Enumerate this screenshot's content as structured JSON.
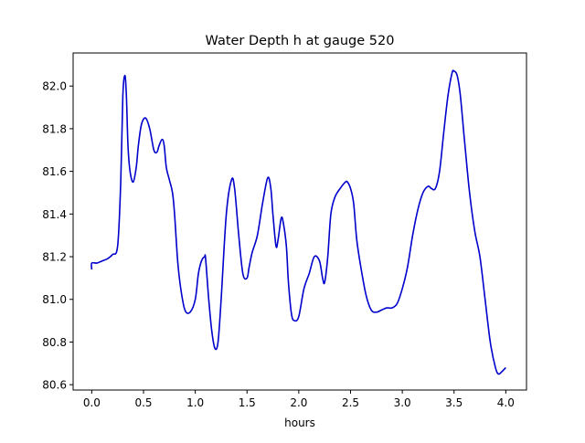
{
  "chart_data": {
    "type": "line",
    "title": "Water Depth h at gauge 520",
    "xlabel": "hours",
    "ylabel": "",
    "xlim": [
      -0.18,
      4.2
    ],
    "ylim": [
      80.575,
      82.155
    ],
    "xticks": [
      0.0,
      0.5,
      1.0,
      1.5,
      2.0,
      2.5,
      3.0,
      3.5,
      4.0
    ],
    "xtick_labels": [
      "0.0",
      "0.5",
      "1.0",
      "1.5",
      "2.0",
      "2.5",
      "3.0",
      "3.5",
      "4.0"
    ],
    "yticks": [
      80.6,
      80.8,
      81.0,
      81.2,
      81.4,
      81.6,
      81.8,
      82.0
    ],
    "ytick_labels": [
      "80.6",
      "80.8",
      "81.0",
      "81.2",
      "81.4",
      "81.6",
      "81.8",
      "82.0"
    ],
    "grid": false,
    "legend": "none",
    "series": [
      {
        "color": "#0000cc",
        "x": [
          0.0,
          0.0,
          0.05,
          0.1,
          0.15,
          0.2,
          0.25,
          0.28,
          0.3,
          0.32,
          0.335,
          0.35,
          0.37,
          0.4,
          0.43,
          0.45,
          0.48,
          0.52,
          0.56,
          0.6,
          0.63,
          0.65,
          0.68,
          0.7,
          0.72,
          0.75,
          0.78,
          0.8,
          0.83,
          0.86,
          0.9,
          0.95,
          1.0,
          1.03,
          1.06,
          1.09,
          1.1,
          1.13,
          1.16,
          1.19,
          1.22,
          1.25,
          1.3,
          1.35,
          1.38,
          1.42,
          1.46,
          1.5,
          1.52,
          1.55,
          1.6,
          1.65,
          1.7,
          1.73,
          1.75,
          1.78,
          1.8,
          1.83,
          1.85,
          1.88,
          1.9,
          1.93,
          1.96,
          2.0,
          2.05,
          2.1,
          2.15,
          2.2,
          2.23,
          2.25,
          2.28,
          2.31,
          2.35,
          2.4,
          2.45,
          2.47,
          2.5,
          2.53,
          2.56,
          2.6,
          2.65,
          2.7,
          2.75,
          2.8,
          2.85,
          2.9,
          2.95,
          3.0,
          3.05,
          3.1,
          3.15,
          3.2,
          3.25,
          3.28,
          3.32,
          3.36,
          3.4,
          3.44,
          3.48,
          3.5,
          3.53,
          3.56,
          3.6,
          3.65,
          3.7,
          3.75,
          3.8,
          3.85,
          3.9,
          3.93,
          3.96,
          4.0
        ],
        "y": [
          81.14,
          81.17,
          81.17,
          81.18,
          81.19,
          81.21,
          81.25,
          81.55,
          81.95,
          82.05,
          81.95,
          81.72,
          81.6,
          81.55,
          81.62,
          81.72,
          81.82,
          81.85,
          81.8,
          81.7,
          81.69,
          81.72,
          81.75,
          81.72,
          81.62,
          81.56,
          81.5,
          81.4,
          81.18,
          81.05,
          80.95,
          80.94,
          81.0,
          81.12,
          81.18,
          81.2,
          81.19,
          81.0,
          80.85,
          80.77,
          80.8,
          81.0,
          81.4,
          81.56,
          81.52,
          81.3,
          81.12,
          81.1,
          81.15,
          81.22,
          81.3,
          81.45,
          81.57,
          81.52,
          81.4,
          81.25,
          81.28,
          81.38,
          81.36,
          81.25,
          81.08,
          80.93,
          80.9,
          80.92,
          81.05,
          81.12,
          81.2,
          81.18,
          81.1,
          81.08,
          81.2,
          81.4,
          81.48,
          81.52,
          81.55,
          81.55,
          81.52,
          81.45,
          81.28,
          81.15,
          81.02,
          80.95,
          80.94,
          80.95,
          80.96,
          80.96,
          80.98,
          81.05,
          81.15,
          81.3,
          81.42,
          81.5,
          81.53,
          81.52,
          81.52,
          81.6,
          81.78,
          81.95,
          82.06,
          82.07,
          82.05,
          81.96,
          81.75,
          81.5,
          81.32,
          81.2,
          81.0,
          80.8,
          80.68,
          80.65,
          80.66,
          80.68
        ]
      }
    ]
  }
}
